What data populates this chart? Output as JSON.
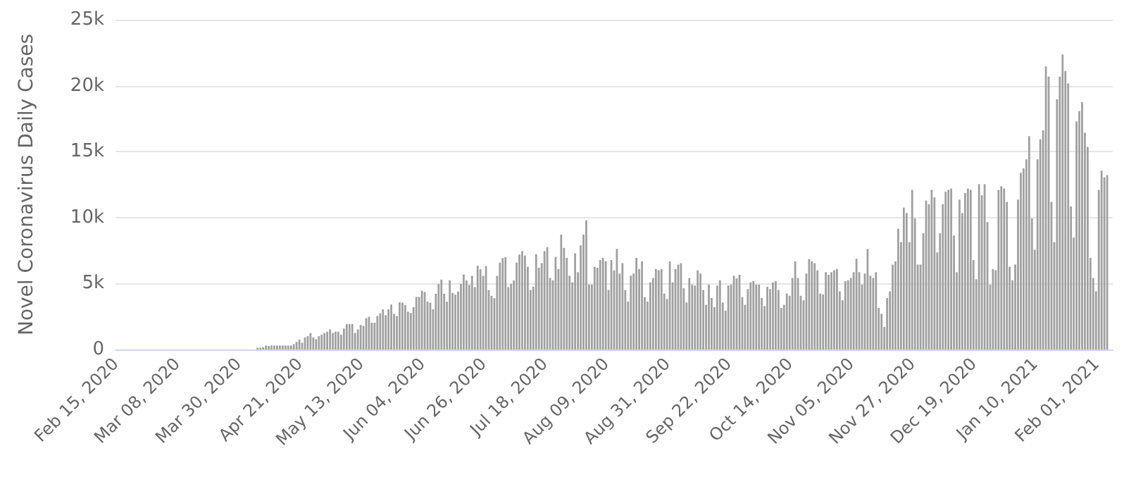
{
  "chart_data": {
    "type": "bar",
    "ylabel": "Novel Coronavirus Daily Cases",
    "color": "#a0a0a0",
    "grid": "y",
    "xlim": [
      "2020-02-15",
      "2021-02-07"
    ],
    "ylim": [
      0,
      25000
    ],
    "yticks": [
      {
        "value": 0,
        "label": "0"
      },
      {
        "value": 5000,
        "label": "5k"
      },
      {
        "value": 10000,
        "label": "10k"
      },
      {
        "value": 15000,
        "label": "15k"
      },
      {
        "value": 20000,
        "label": "20k"
      },
      {
        "value": 25000,
        "label": "25k"
      }
    ],
    "xticks": [
      {
        "value": "2020-02-15",
        "label": "Feb 15, 2020"
      },
      {
        "value": "2020-03-08",
        "label": "Mar 08, 2020"
      },
      {
        "value": "2020-03-30",
        "label": "Mar 30, 2020"
      },
      {
        "value": "2020-04-21",
        "label": "Apr 21, 2020"
      },
      {
        "value": "2020-05-13",
        "label": "May 13, 2020"
      },
      {
        "value": "2020-06-04",
        "label": "Jun 04, 2020"
      },
      {
        "value": "2020-06-26",
        "label": "Jun 26, 2020"
      },
      {
        "value": "2020-07-18",
        "label": "Jul 18, 2020"
      },
      {
        "value": "2020-08-09",
        "label": "Aug 09, 2020"
      },
      {
        "value": "2020-08-31",
        "label": "Aug 31, 2020"
      },
      {
        "value": "2020-09-22",
        "label": "Sep 22, 2020"
      },
      {
        "value": "2020-10-14",
        "label": "Oct 14, 2020"
      },
      {
        "value": "2020-11-05",
        "label": "Nov 05, 2020"
      },
      {
        "value": "2020-11-27",
        "label": "Nov 27, 2020"
      },
      {
        "value": "2020-12-19",
        "label": "Dec 19, 2020"
      },
      {
        "value": "2021-01-10",
        "label": "Jan 10, 2021"
      },
      {
        "value": "2021-02-01",
        "label": "Feb 01, 2021"
      }
    ],
    "x": [
      "2020-04-06",
      "2020-04-07",
      "2020-04-08",
      "2020-04-09",
      "2020-04-10",
      "2020-04-11",
      "2020-04-12",
      "2020-04-13",
      "2020-04-14",
      "2020-04-15",
      "2020-04-16",
      "2020-04-17",
      "2020-04-18",
      "2020-04-19",
      "2020-04-20",
      "2020-04-21",
      "2020-04-22",
      "2020-04-23",
      "2020-04-24",
      "2020-04-25",
      "2020-04-26",
      "2020-04-27",
      "2020-04-28",
      "2020-04-29",
      "2020-04-30",
      "2020-05-01",
      "2020-05-02",
      "2020-05-03",
      "2020-05-04",
      "2020-05-05",
      "2020-05-06",
      "2020-05-07",
      "2020-05-08",
      "2020-05-09",
      "2020-05-10",
      "2020-05-11",
      "2020-05-12",
      "2020-05-13",
      "2020-05-14",
      "2020-05-15",
      "2020-05-16",
      "2020-05-17",
      "2020-05-18",
      "2020-05-19",
      "2020-05-20",
      "2020-05-21",
      "2020-05-22",
      "2020-05-23",
      "2020-05-24",
      "2020-05-25",
      "2020-05-26",
      "2020-05-27",
      "2020-05-28",
      "2020-05-29",
      "2020-05-30",
      "2020-05-31",
      "2020-06-01",
      "2020-06-02",
      "2020-06-03",
      "2020-06-04",
      "2020-06-05",
      "2020-06-06",
      "2020-06-07",
      "2020-06-08",
      "2020-06-09",
      "2020-06-10",
      "2020-06-11",
      "2020-06-12",
      "2020-06-13",
      "2020-06-14",
      "2020-06-15",
      "2020-06-16",
      "2020-06-17",
      "2020-06-18",
      "2020-06-19",
      "2020-06-20",
      "2020-06-21",
      "2020-06-22",
      "2020-06-23",
      "2020-06-24",
      "2020-06-25",
      "2020-06-26",
      "2020-06-27",
      "2020-06-28",
      "2020-06-29",
      "2020-06-30",
      "2020-07-01",
      "2020-07-02",
      "2020-07-03",
      "2020-07-04",
      "2020-07-05",
      "2020-07-06",
      "2020-07-07",
      "2020-07-08",
      "2020-07-09",
      "2020-07-10",
      "2020-07-11",
      "2020-07-12",
      "2020-07-13",
      "2020-07-14",
      "2020-07-15",
      "2020-07-16",
      "2020-07-17",
      "2020-07-18",
      "2020-07-19",
      "2020-07-20",
      "2020-07-21",
      "2020-07-22",
      "2020-07-23",
      "2020-07-24",
      "2020-07-25",
      "2020-07-26",
      "2020-07-27",
      "2020-07-28",
      "2020-07-29",
      "2020-07-30",
      "2020-07-31",
      "2020-08-01",
      "2020-08-02",
      "2020-08-03",
      "2020-08-04",
      "2020-08-05",
      "2020-08-06",
      "2020-08-07",
      "2020-08-08",
      "2020-08-09",
      "2020-08-10",
      "2020-08-11",
      "2020-08-12",
      "2020-08-13",
      "2020-08-14",
      "2020-08-15",
      "2020-08-16",
      "2020-08-17",
      "2020-08-18",
      "2020-08-19",
      "2020-08-20",
      "2020-08-21",
      "2020-08-22",
      "2020-08-23",
      "2020-08-24",
      "2020-08-25",
      "2020-08-26",
      "2020-08-27",
      "2020-08-28",
      "2020-08-29",
      "2020-08-30",
      "2020-08-31",
      "2020-09-01",
      "2020-09-02",
      "2020-09-03",
      "2020-09-04",
      "2020-09-05",
      "2020-09-06",
      "2020-09-07",
      "2020-09-08",
      "2020-09-09",
      "2020-09-10",
      "2020-09-11",
      "2020-09-12",
      "2020-09-13",
      "2020-09-14",
      "2020-09-15",
      "2020-09-16",
      "2020-09-17",
      "2020-09-18",
      "2020-09-19",
      "2020-09-20",
      "2020-09-21",
      "2020-09-22",
      "2020-09-23",
      "2020-09-24",
      "2020-09-25",
      "2020-09-26",
      "2020-09-27",
      "2020-09-28",
      "2020-09-29",
      "2020-09-30",
      "2020-10-01",
      "2020-10-02",
      "2020-10-03",
      "2020-10-04",
      "2020-10-05",
      "2020-10-06",
      "2020-10-07",
      "2020-10-08",
      "2020-10-09",
      "2020-10-10",
      "2020-10-11",
      "2020-10-12",
      "2020-10-13",
      "2020-10-14",
      "2020-10-15",
      "2020-10-16",
      "2020-10-17",
      "2020-10-18",
      "2020-10-19",
      "2020-10-20",
      "2020-10-21",
      "2020-10-22",
      "2020-10-23",
      "2020-10-24",
      "2020-10-25",
      "2020-10-26",
      "2020-10-27",
      "2020-10-28",
      "2020-10-29",
      "2020-10-30",
      "2020-10-31",
      "2020-11-01",
      "2020-11-02",
      "2020-11-03",
      "2020-11-04",
      "2020-11-05",
      "2020-11-06",
      "2020-11-07",
      "2020-11-08",
      "2020-11-09",
      "2020-11-10",
      "2020-11-11",
      "2020-11-12",
      "2020-11-13",
      "2020-11-14",
      "2020-11-15",
      "2020-11-16",
      "2020-11-17",
      "2020-11-18",
      "2020-11-19",
      "2020-11-20",
      "2020-11-21",
      "2020-11-22",
      "2020-11-23",
      "2020-11-24",
      "2020-11-25",
      "2020-11-26",
      "2020-11-27",
      "2020-11-28",
      "2020-11-29",
      "2020-11-30",
      "2020-12-01",
      "2020-12-02",
      "2020-12-03",
      "2020-12-04",
      "2020-12-05",
      "2020-12-06",
      "2020-12-07",
      "2020-12-08",
      "2020-12-09",
      "2020-12-10",
      "2020-12-11",
      "2020-12-12",
      "2020-12-13",
      "2020-12-14",
      "2020-12-15",
      "2020-12-16",
      "2020-12-17",
      "2020-12-18",
      "2020-12-19",
      "2020-12-20",
      "2020-12-21",
      "2020-12-22",
      "2020-12-23",
      "2020-12-24",
      "2020-12-25",
      "2020-12-26",
      "2020-12-27",
      "2020-12-28",
      "2020-12-29",
      "2020-12-30",
      "2020-12-31",
      "2021-01-01",
      "2021-01-02",
      "2021-01-03",
      "2021-01-04",
      "2021-01-05",
      "2021-01-06",
      "2021-01-07",
      "2021-01-08",
      "2021-01-09",
      "2021-01-10",
      "2021-01-11",
      "2021-01-12",
      "2021-01-13",
      "2021-01-14",
      "2021-01-15",
      "2021-01-16",
      "2021-01-17",
      "2021-01-18",
      "2021-01-19",
      "2021-01-20",
      "2021-01-21",
      "2021-01-22",
      "2021-01-23",
      "2021-01-24",
      "2021-01-25",
      "2021-01-26",
      "2021-01-27",
      "2021-01-28",
      "2021-01-29",
      "2021-01-30",
      "2021-01-31",
      "2021-02-01",
      "2021-02-02",
      "2021-02-03",
      "2021-02-04",
      "2021-02-05"
    ],
    "values": [
      135,
      135,
      170,
      300,
      270,
      300,
      300,
      300,
      300,
      300,
      300,
      300,
      300,
      410,
      575,
      745,
      510,
      910,
      1010,
      1250,
      910,
      780,
      1010,
      1120,
      1250,
      1350,
      1520,
      1250,
      1350,
      1350,
      1120,
      1590,
      1930,
      1930,
      1930,
      1250,
      1520,
      1860,
      1790,
      2370,
      2470,
      2030,
      2030,
      2540,
      2740,
      3040,
      2600,
      3040,
      3410,
      2700,
      2540,
      3580,
      3550,
      3380,
      2870,
      2770,
      3210,
      3990,
      3990,
      4460,
      4360,
      3620,
      3550,
      3040,
      4230,
      4970,
      5300,
      4230,
      3620,
      5240,
      4290,
      4160,
      4390,
      4970,
      5680,
      5240,
      4900,
      5580,
      4730,
      6350,
      6080,
      5580,
      6320,
      4500,
      4060,
      3890,
      5580,
      6590,
      6930,
      7000,
      4730,
      4970,
      5240,
      6590,
      7200,
      7460,
      7120,
      6270,
      4510,
      4750,
      7220,
      6200,
      6540,
      7460,
      7760,
      5420,
      5250,
      7020,
      6100,
      8710,
      7700,
      6950,
      5590,
      5090,
      7290,
      5860,
      7900,
      8710,
      9800,
      4920,
      4920,
      6270,
      6200,
      6780,
      6950,
      6680,
      4510,
      6780,
      6000,
      7630,
      5760,
      6540,
      4510,
      3630,
      5590,
      5760,
      6950,
      6100,
      6680,
      3970,
      3630,
      5090,
      5420,
      6100,
      6000,
      6100,
      4240,
      3830,
      6680,
      5090,
      6100,
      6440,
      6540,
      4640,
      3560,
      5420,
      4920,
      4850,
      6000,
      5760,
      4510,
      3390,
      4920,
      3900,
      3220,
      4850,
      5250,
      3560,
      2950,
      4850,
      4920,
      5590,
      5390,
      5660,
      3970,
      3390,
      4580,
      5090,
      5190,
      4920,
      4920,
      3900,
      3290,
      4750,
      4580,
      5090,
      5190,
      4510,
      3150,
      3390,
      4240,
      4070,
      5420,
      6680,
      5420,
      4070,
      3730,
      5760,
      6850,
      6680,
      6540,
      6000,
      4240,
      4170,
      5860,
      5660,
      5860,
      6000,
      6100,
      4410,
      3730,
      5190,
      5250,
      5420,
      5860,
      6880,
      5860,
      4920,
      5760,
      7630,
      5590,
      5420,
      5860,
      3150,
      2710,
      1700,
      3900,
      4410,
      6440,
      6680,
      9150,
      8140,
      10750,
      10340,
      8140,
      12100,
      9930,
      6440,
      6440,
      8810,
      11290,
      11020,
      12100,
      11530,
      7360,
      8810,
      11020,
      11970,
      12100,
      12200,
      8640,
      5860,
      11360,
      10340,
      11870,
      12200,
      12100,
      6780,
      5320,
      12540,
      11700,
      12540,
      9660,
      4920,
      6100,
      6000,
      12100,
      12370,
      12200,
      11190,
      6270,
      5250,
      6440,
      11360,
      13390,
      13730,
      14410,
      16170,
      9930,
      7560,
      14410,
      15930,
      16610,
      21460,
      20680,
      11190,
      8140,
      18980,
      20680,
      22370,
      21120,
      20170,
      10850,
      8480,
      17290,
      18070,
      18750,
      16440,
      15360,
      6950,
      5420,
      4410,
      12100,
      13560,
      13050,
      13220
    ]
  }
}
